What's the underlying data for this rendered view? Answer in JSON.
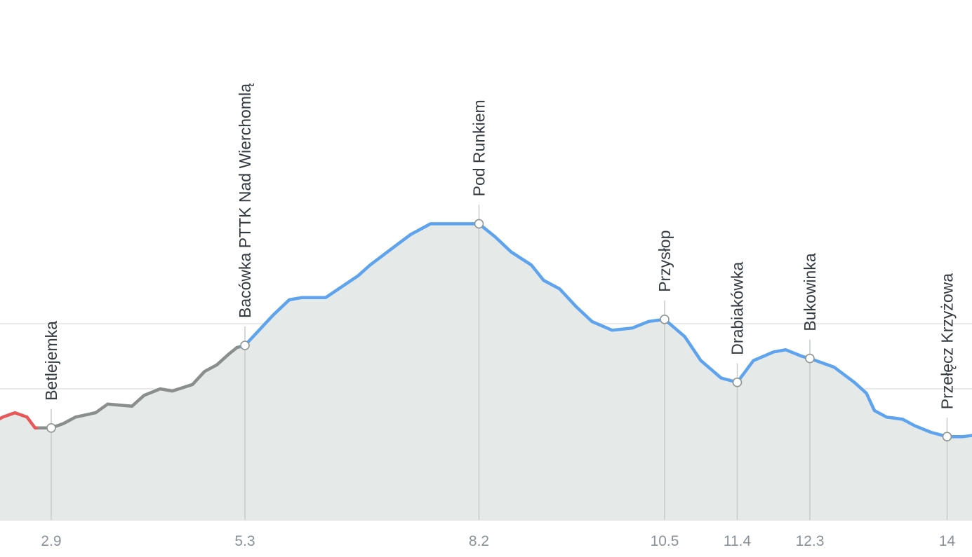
{
  "chart_data": {
    "type": "area",
    "title": "",
    "xlabel": "",
    "ylabel": "",
    "xlim": [
      0,
      14.4
    ],
    "grid": true,
    "elevation_profile": [
      [
        0.0,
        49.0
      ],
      [
        0.2,
        51.5
      ],
      [
        0.45,
        53.0
      ],
      [
        0.6,
        54.5
      ],
      [
        0.7,
        53.0
      ],
      [
        0.8,
        52.5
      ],
      [
        0.9,
        51.5
      ],
      [
        1.0,
        50.5
      ],
      [
        1.3,
        51.0
      ],
      [
        1.6,
        52.0
      ],
      [
        1.9,
        53.0
      ],
      [
        2.1,
        53.5
      ],
      [
        2.3,
        55.5
      ],
      [
        2.45,
        56.5
      ],
      [
        2.6,
        55.5
      ],
      [
        2.7,
        53.0
      ],
      [
        2.9,
        53.0
      ],
      [
        3.05,
        54.0
      ],
      [
        3.2,
        55.5
      ],
      [
        3.45,
        56.5
      ],
      [
        3.6,
        58.5
      ],
      [
        3.9,
        58.0
      ],
      [
        4.05,
        60.5
      ],
      [
        4.25,
        62.0
      ],
      [
        4.4,
        61.5
      ],
      [
        4.65,
        63.0
      ],
      [
        4.8,
        66.0
      ],
      [
        4.95,
        67.5
      ],
      [
        5.1,
        70.0
      ],
      [
        5.2,
        71.5
      ],
      [
        5.3,
        72.0
      ],
      [
        5.45,
        75.0
      ],
      [
        5.65,
        79.0
      ],
      [
        5.85,
        82.5
      ],
      [
        6.0,
        83.0
      ],
      [
        6.3,
        83.0
      ],
      [
        6.5,
        85.5
      ],
      [
        6.7,
        88.0
      ],
      [
        6.85,
        90.5
      ],
      [
        7.1,
        94.0
      ],
      [
        7.35,
        97.5
      ],
      [
        7.6,
        100.0
      ],
      [
        7.8,
        100.0
      ],
      [
        8.0,
        100.0
      ],
      [
        8.2,
        100.0
      ],
      [
        8.4,
        97.0
      ],
      [
        8.6,
        93.5
      ],
      [
        8.85,
        90.5
      ],
      [
        9.0,
        87.0
      ],
      [
        9.2,
        85.0
      ],
      [
        9.4,
        81.0
      ],
      [
        9.6,
        77.5
      ],
      [
        9.85,
        75.5
      ],
      [
        10.1,
        76.0
      ],
      [
        10.3,
        77.5
      ],
      [
        10.5,
        78.0
      ],
      [
        10.75,
        74.0
      ],
      [
        10.95,
        68.5
      ],
      [
        11.2,
        64.5
      ],
      [
        11.4,
        63.5
      ],
      [
        11.6,
        68.5
      ],
      [
        11.85,
        70.5
      ],
      [
        12.0,
        71.0
      ],
      [
        12.2,
        69.5
      ],
      [
        12.3,
        69.0
      ],
      [
        12.6,
        67.0
      ],
      [
        12.85,
        63.5
      ],
      [
        13.0,
        61.0
      ],
      [
        13.1,
        57.0
      ],
      [
        13.25,
        55.5
      ],
      [
        13.45,
        55.0
      ],
      [
        13.6,
        53.5
      ],
      [
        13.8,
        52.0
      ],
      [
        14.0,
        51.0
      ],
      [
        14.2,
        51.0
      ],
      [
        14.4,
        51.5
      ]
    ],
    "series": [
      {
        "color": "#e8585a",
        "x_range": [
          0.0,
          2.75
        ]
      },
      {
        "color": "#8a8f8e",
        "x_range": [
          2.75,
          5.25
        ]
      },
      {
        "color": "#5ea3ee",
        "x_range": [
          5.25,
          14.4
        ]
      }
    ],
    "waypoints": [
      {
        "x": 2.9,
        "name": "Betlejemka"
      },
      {
        "x": 5.3,
        "name": "Bacówka PTTK Nad Wierchomlą"
      },
      {
        "x": 8.2,
        "name": "Pod Runkiem"
      },
      {
        "x": 10.5,
        "name": "Przysłop"
      },
      {
        "x": 11.4,
        "name": "Drabiakówka"
      },
      {
        "x": 12.3,
        "name": "Bukowinka"
      },
      {
        "x": 14.0,
        "name": "Przełęcz Krzyżowa"
      }
    ],
    "x_tick_labels": [
      "2.9",
      "5.3",
      "8.2",
      "10.5",
      "11.4",
      "12.3",
      "14"
    ],
    "area_fill": "#e5e9e8"
  }
}
